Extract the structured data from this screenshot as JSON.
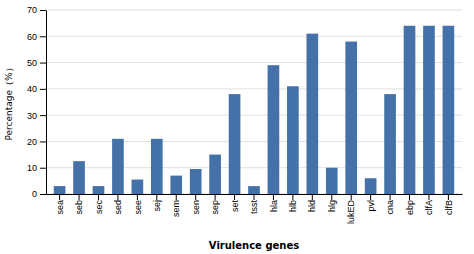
{
  "chart_data": {
    "type": "bar",
    "categories": [
      "sea",
      "seb",
      "sec",
      "sed",
      "see",
      "sej",
      "sem",
      "sen",
      "sep",
      "set",
      "tsst",
      "hla",
      "hlb",
      "hld",
      "hlg",
      "lukED",
      "pvl",
      "cna",
      "ebp",
      "clfA",
      "clfB"
    ],
    "values": [
      3,
      12.5,
      3,
      21,
      5.5,
      21,
      7,
      9.5,
      15,
      38,
      3,
      49,
      41,
      61,
      10,
      58,
      6,
      38,
      64,
      64,
      64
    ],
    "color": "#4472a8",
    "xlabel": "Virulence genes",
    "ylabel": "Percentage（%）",
    "ylim": [
      0,
      70
    ],
    "yticks": [
      0,
      10,
      20,
      30,
      40,
      50,
      60,
      70
    ],
    "grid": true
  }
}
